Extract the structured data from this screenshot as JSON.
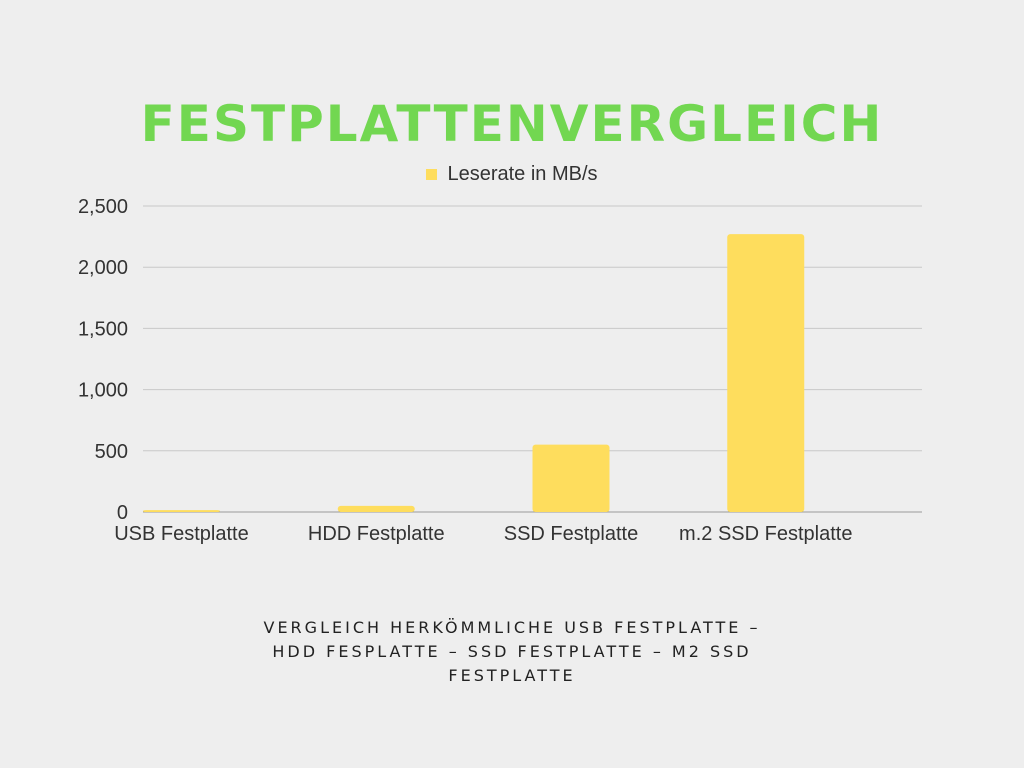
{
  "title": "FESTPLATTENVERGLEICH",
  "subtitle": "VERGLEICH HERKÖMMLICHE USB FESTPLATTE – HDD FESPLATTE – SSD FESTPLATTE – M2 SSD FESTPLATTE",
  "colors": {
    "title": "#72d751",
    "bar": "#fedd5d",
    "grid": "#c8c8c8",
    "background": "#eeeeee"
  },
  "chart_data": {
    "type": "bar",
    "categories": [
      "USB Festplatte",
      "HDD Festplatte",
      "SSD Festplatte",
      "m.2 SSD Festplatte"
    ],
    "series": [
      {
        "name": "Leserate in MB/s",
        "values": [
          15,
          50,
          550,
          2270
        ]
      }
    ],
    "ylim": [
      0,
      2500
    ],
    "yticks": [
      0,
      500,
      1000,
      1500,
      2000,
      2500
    ],
    "ytick_labels": [
      "0",
      "500",
      "1,000",
      "1,500",
      "2,000",
      "2,500"
    ],
    "grid": true,
    "legend_position": "top-center"
  }
}
